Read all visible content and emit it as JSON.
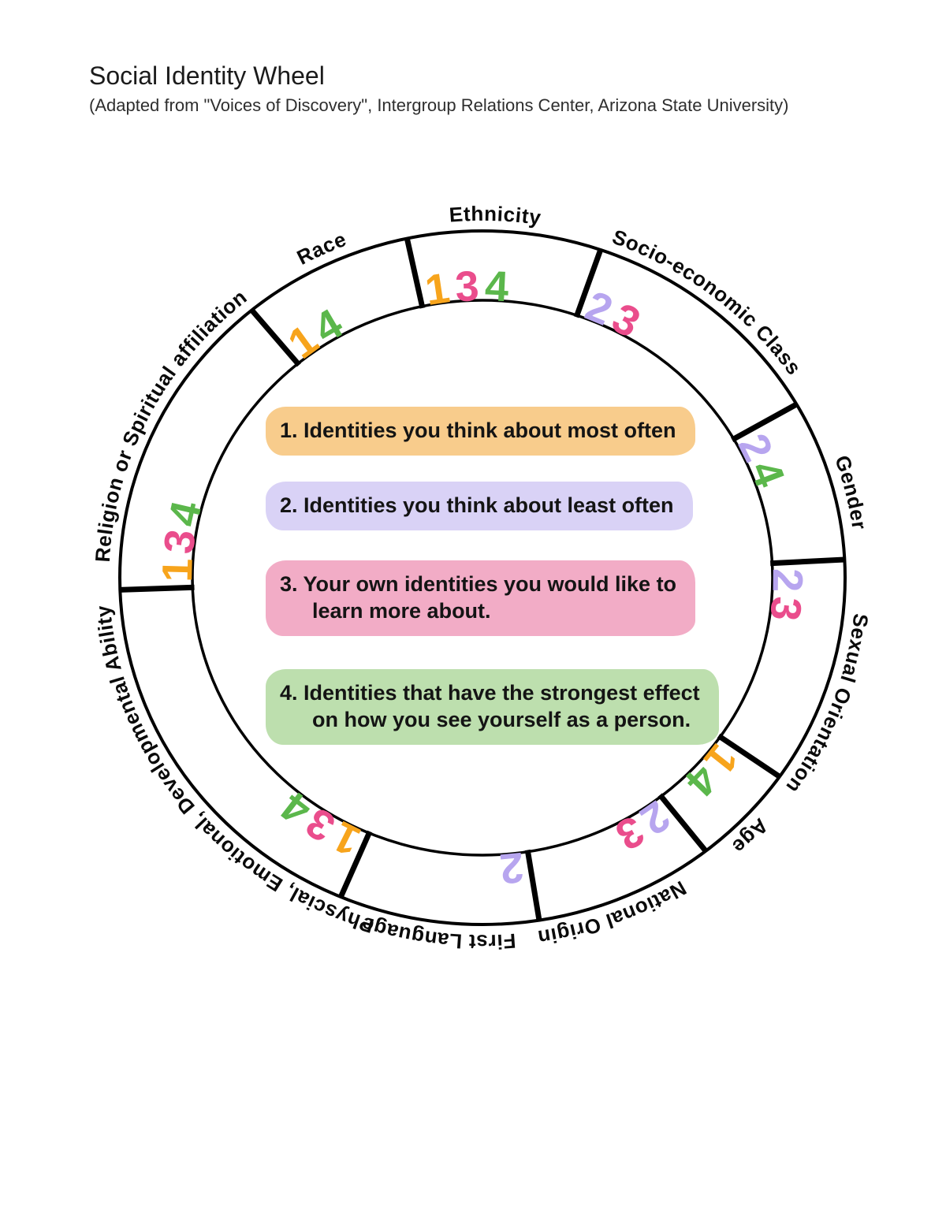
{
  "page": {
    "title": "Social Identity Wheel",
    "subtitle": "(Adapted from \"Voices of Discovery\", Intergroup Relations Center, Arizona State University)"
  },
  "legend": {
    "items": [
      {
        "num": "1",
        "label": "1. Identities you think about most often",
        "line2": "",
        "highlight": "#F8CC8C"
      },
      {
        "num": "2",
        "label": "2. Identities you think about least often",
        "line2": "",
        "highlight": "#D9D2F6"
      },
      {
        "num": "3",
        "label": "3. Your own identities you would like to",
        "line2": "learn more about.",
        "highlight": "#F2ACC6"
      },
      {
        "num": "4",
        "label": "4. Identities that have the strongest effect",
        "line2": "on how you see yourself as a person.",
        "highlight": "#BDDFAE"
      }
    ]
  },
  "wheel": {
    "number_colors": {
      "1": "#F7A41C",
      "2": "#B7A5EF",
      "3": "#EA4D8C",
      "4": "#5BB74B"
    },
    "segments": [
      {
        "label": "Ethnicity",
        "start": 348,
        "end": 379,
        "label_angle": 2,
        "numbers": [
          1,
          3,
          4
        ]
      },
      {
        "label": "Socio-economic Class",
        "start": 19,
        "end": 60,
        "label_angle": 39,
        "numbers": [
          2,
          3
        ]
      },
      {
        "label": "Gender",
        "start": 60,
        "end": 87,
        "label_angle": 77,
        "numbers": [
          2,
          4
        ]
      },
      {
        "label": "Sexual Orientation",
        "start": 87,
        "end": 125,
        "label_angle": 110,
        "numbers": [
          2,
          3
        ]
      },
      {
        "label": "Age",
        "start": 125,
        "end": 142,
        "label_angle": 134,
        "numbers": [
          1,
          4
        ]
      },
      {
        "label": "National Origin",
        "start": 142,
        "end": 171,
        "label_angle": 159,
        "numbers": [
          2,
          3
        ]
      },
      {
        "label": "First Language",
        "start": 171,
        "end": 203,
        "label_angle": 187,
        "numbers": [
          2
        ]
      },
      {
        "label": "Physcial, Emotional, Developmental Ability",
        "start": 203,
        "end": 268,
        "label_angle": 232,
        "numbers": [
          1,
          3,
          4
        ]
      },
      {
        "label": "Religion or Spiritual affiliation",
        "start": 268,
        "end": 320.5,
        "label_angle": 296,
        "numbers": [
          1,
          3,
          4
        ]
      },
      {
        "label": "Race",
        "start": 320.5,
        "end": 348,
        "label_angle": 334,
        "numbers": [
          1,
          4
        ]
      }
    ]
  }
}
